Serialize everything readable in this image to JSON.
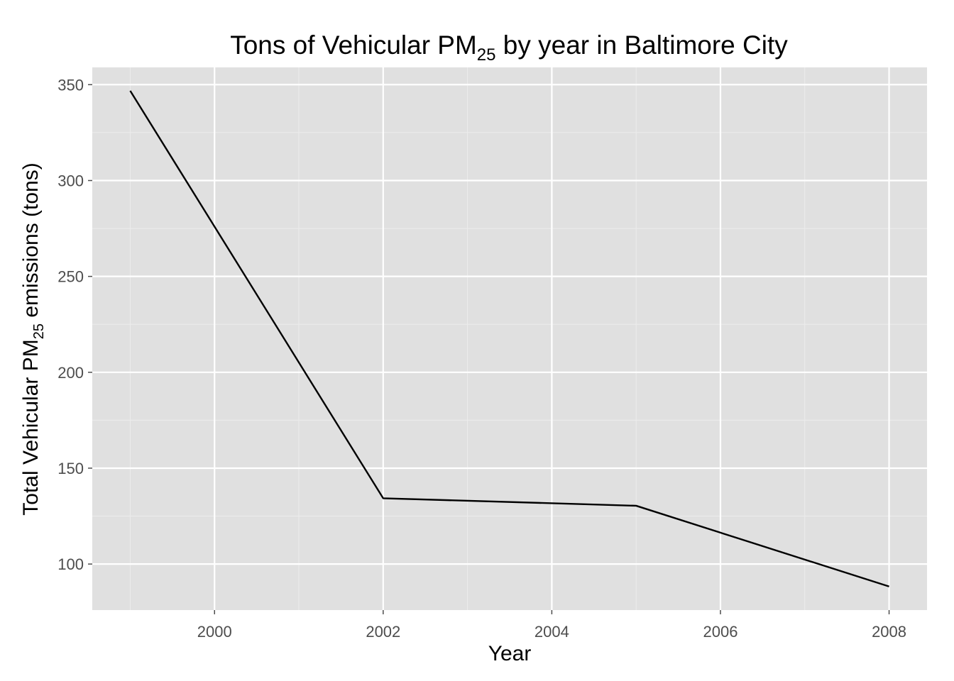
{
  "chart_data": {
    "type": "line",
    "title": {
      "prefix": "Tons of Vehicular PM",
      "subscript": "25",
      "suffix": " by year in Baltimore City"
    },
    "xlabel": "Year",
    "ylabel": {
      "prefix": "Total Vehicular PM",
      "subscript": "25",
      "suffix": " emissions (tons)"
    },
    "x": [
      1999,
      2002,
      2005,
      2008
    ],
    "y": [
      346.8,
      134.3,
      130.4,
      88.3
    ],
    "xlim": [
      1998.55,
      2008.45
    ],
    "ylim": [
      76,
      359
    ],
    "x_ticks": [
      2000,
      2002,
      2004,
      2006,
      2008
    ],
    "y_ticks": [
      100,
      150,
      200,
      250,
      300,
      350
    ],
    "grid": true,
    "legend": "none",
    "colors": {
      "panel": "#e0e0e0",
      "grid_major": "#ffffff",
      "grid_minor": "#ececec",
      "line": "#000000",
      "tick_text": "#4d4d4d",
      "tick_mark": "#4d4d4d"
    }
  }
}
